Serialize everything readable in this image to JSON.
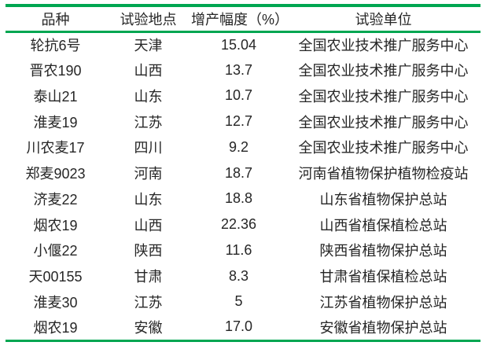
{
  "accent_color": "#00a651",
  "text_color": "#262626",
  "table": {
    "headers": [
      "品种",
      "试验地点",
      "增产幅度（%）",
      "试验单位"
    ],
    "rows": [
      [
        "轮抗6号",
        "天津",
        "15.04",
        "全国农业技术推广服务中心"
      ],
      [
        "晋农190",
        "山西",
        "13.7",
        "全国农业技术推广服务中心"
      ],
      [
        "泰山21",
        "山东",
        "10.7",
        "全国农业技术推广服务中心"
      ],
      [
        "淮麦19",
        "江苏",
        "12.7",
        "全国农业技术推广服务中心"
      ],
      [
        "川农麦17",
        "四川",
        "9.2",
        "全国农业技术推广服务中心"
      ],
      [
        "郑麦9023",
        "河南",
        "18.7",
        "河南省植物保护植物检疫站"
      ],
      [
        "济麦22",
        "山东",
        "18.8",
        "山东省植物保护总站"
      ],
      [
        "烟农19",
        "山西",
        "22.36",
        "山西省植保植检总站"
      ],
      [
        "小偃22",
        "陕西",
        "11.6",
        "陕西省植物保护总站"
      ],
      [
        "天00155",
        "甘肃",
        "8.3",
        "甘肃省植保植检总站"
      ],
      [
        "淮麦30",
        "江苏",
        "5",
        "江苏省植物保护总站"
      ],
      [
        "烟农19",
        "安徽",
        "17.0",
        "安徽省植物保护总站"
      ]
    ]
  }
}
